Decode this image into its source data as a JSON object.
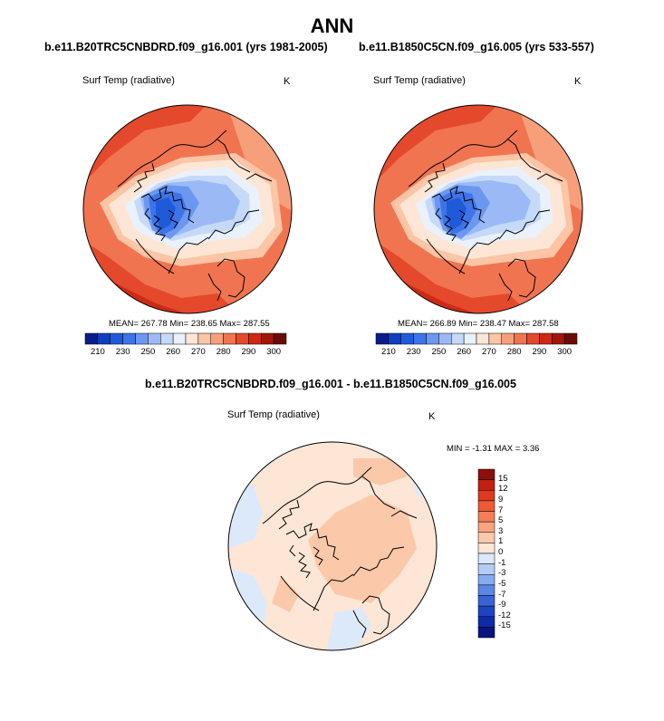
{
  "page": {
    "title": "ANN"
  },
  "panels": [
    {
      "case": "b.e11.B20TRC5CNBDRD.f09_g16.001 (yrs 1981-2005)",
      "variable": "Surf Temp (radiative)",
      "units": "K",
      "stats": "MEAN= 267.78  Min= 238.65  Max= 287.55"
    },
    {
      "case": "b.e11.B1850C5CN.f09_g16.005 (yrs 533-557)",
      "variable": "Surf Temp (radiative)",
      "units": "K",
      "stats": "MEAN= 266.89  Min= 238.47  Max= 287.58"
    },
    {
      "case": "b.e11.B20TRC5CNBDRD.f09_g16.001 - b.e11.B1850C5CN.f09_g16.005",
      "variable": "Surf Temp (radiative)",
      "units": "K",
      "stats": "MIN =  -1.31 MAX =   3.36"
    }
  ],
  "chart_data": [
    {
      "type": "heatmap",
      "projection": "north-polar-stereographic",
      "title": "b.e11.B20TRC5CNBDRD.f09_g16.001 (yrs 1981-2005)",
      "variable": "Surf Temp (radiative)",
      "units": "K",
      "mean": 267.78,
      "min": 238.65,
      "max": 287.55,
      "colorbar": {
        "orientation": "horizontal",
        "levels": [
          210,
          220,
          230,
          240,
          250,
          255,
          260,
          265,
          270,
          275,
          280,
          285,
          290,
          295,
          300
        ],
        "tick_labels": [
          "210",
          "230",
          "250",
          "260",
          "270",
          "280",
          "290",
          "300"
        ],
        "colors": [
          "#081d8a",
          "#0d3fbf",
          "#1f5ad9",
          "#3d74e8",
          "#6b97f0",
          "#9bbaf5",
          "#c6d9f9",
          "#e9f1fc",
          "#fde6d5",
          "#fbc5a6",
          "#f79f7b",
          "#f07450",
          "#e4492c",
          "#cc2a14",
          "#a2160a",
          "#6e0a06"
        ]
      }
    },
    {
      "type": "heatmap",
      "projection": "north-polar-stereographic",
      "title": "b.e11.B1850C5CN.f09_g16.005 (yrs 533-557)",
      "variable": "Surf Temp (radiative)",
      "units": "K",
      "mean": 266.89,
      "min": 238.47,
      "max": 287.58,
      "colorbar": {
        "orientation": "horizontal",
        "levels": [
          210,
          220,
          230,
          240,
          250,
          255,
          260,
          265,
          270,
          275,
          280,
          285,
          290,
          295,
          300
        ],
        "tick_labels": [
          "210",
          "230",
          "250",
          "260",
          "270",
          "280",
          "290",
          "300"
        ],
        "colors": [
          "#081d8a",
          "#0d3fbf",
          "#1f5ad9",
          "#3d74e8",
          "#6b97f0",
          "#9bbaf5",
          "#c6d9f9",
          "#e9f1fc",
          "#fde6d5",
          "#fbc5a6",
          "#f79f7b",
          "#f07450",
          "#e4492c",
          "#cc2a14",
          "#a2160a",
          "#6e0a06"
        ]
      }
    },
    {
      "type": "heatmap",
      "projection": "north-polar-stereographic",
      "title": "b.e11.B20TRC5CNBDRD.f09_g16.001 - b.e11.B1850C5CN.f09_g16.005",
      "variable": "Surf Temp (radiative)",
      "units": "K",
      "min": -1.31,
      "max": 3.36,
      "colorbar": {
        "orientation": "vertical",
        "tick_labels": [
          "15",
          "12",
          "9",
          "7",
          "5",
          "3",
          "1",
          "0",
          "-1",
          "-3",
          "-5",
          "-7",
          "-9",
          "-12",
          "-15"
        ],
        "colors": [
          "#8f0d0b",
          "#c21f12",
          "#e0391f",
          "#ef5a34",
          "#f47f56",
          "#f8a47f",
          "#fbc9aa",
          "#fde6d6",
          "#dce9fa",
          "#b4cdf6",
          "#86acf0",
          "#5a87e6",
          "#3863d8",
          "#1f44c2",
          "#0f2ba6",
          "#06157f"
        ]
      }
    }
  ]
}
